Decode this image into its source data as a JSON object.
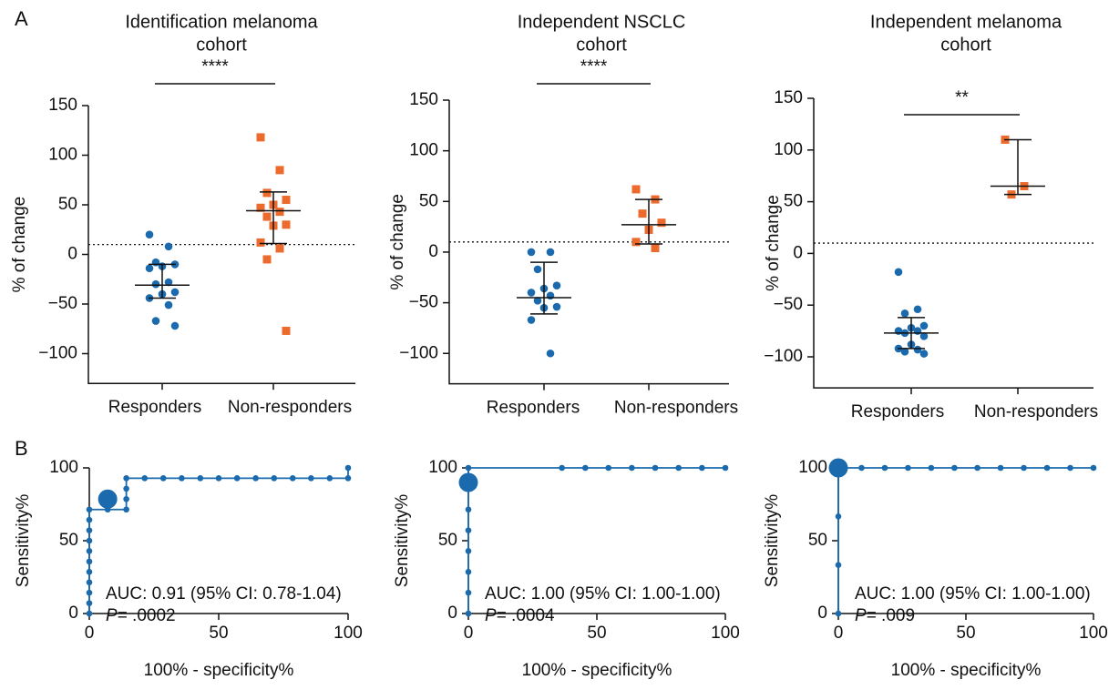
{
  "chart_data": [
    {
      "type": "strip",
      "panel_label": "A",
      "title": [
        "Identification melanoma",
        "cohort"
      ],
      "significance": "****",
      "ylabel": "% of change",
      "categories": [
        "Responders",
        "Non-responders"
      ],
      "values": [
        [
          20,
          8,
          -8,
          -10,
          -12,
          -14,
          -28,
          -30,
          -38,
          -40,
          -44,
          -51,
          -67,
          -72
        ],
        [
          118,
          85,
          62,
          55,
          50,
          47,
          43,
          38,
          30,
          29,
          12,
          6,
          -5,
          -77
        ]
      ],
      "centers": [
        -31,
        44
      ],
      "whisker_low": [
        -44,
        11
      ],
      "whisker_high": [
        -10,
        63
      ],
      "colors": [
        "#1a6aad",
        "#ec6a2c"
      ],
      "markers": [
        "circle",
        "square"
      ],
      "threshold": 10,
      "ylim": [
        -130,
        150
      ],
      "yticks": [
        {
          "value": -100,
          "label": "−100"
        },
        {
          "value": -50,
          "label": "−50"
        },
        0,
        50,
        100,
        150
      ]
    },
    {
      "type": "strip",
      "title": [
        "Independent NSCLC",
        "cohort"
      ],
      "significance": "****",
      "ylabel": "% of change",
      "categories": [
        "Responders",
        "Non-responders"
      ],
      "values": [
        [
          0,
          0,
          -17,
          -33,
          -36,
          -40,
          -43,
          -48,
          -54,
          -55,
          -67,
          -100
        ],
        [
          62,
          52,
          38,
          29,
          22,
          10,
          4
        ]
      ],
      "centers": [
        -45,
        27
      ],
      "whisker_low": [
        -61,
        8
      ],
      "whisker_high": [
        -10,
        52
      ],
      "colors": [
        "#1a6aad",
        "#ec6a2c"
      ],
      "markers": [
        "circle",
        "square"
      ],
      "threshold": 10,
      "ylim": [
        -130,
        150
      ],
      "yticks": [
        {
          "value": -100,
          "label": "−100"
        },
        {
          "value": -50,
          "label": "−50"
        },
        0,
        50,
        100,
        150
      ]
    },
    {
      "type": "strip",
      "title": [
        "Independent melanoma",
        "cohort"
      ],
      "significance": "**",
      "ylabel": "% of change",
      "categories": [
        "Responders",
        "Non-responders"
      ],
      "values": [
        [
          -18,
          -54,
          -58,
          -70,
          -72,
          -75,
          -75,
          -77,
          -80,
          -88,
          -92,
          -93,
          -95,
          -97
        ],
        [
          110,
          65,
          57
        ]
      ],
      "centers": [
        -77,
        65
      ],
      "whisker_low": [
        -92,
        57
      ],
      "whisker_high": [
        -62,
        110
      ],
      "colors": [
        "#1a6aad",
        "#ec6a2c"
      ],
      "markers": [
        "circle",
        "square"
      ],
      "threshold": 10,
      "ylim": [
        -130,
        150
      ],
      "yticks": [
        {
          "value": -100,
          "label": "−100"
        },
        {
          "value": -50,
          "label": "−50"
        },
        0,
        50,
        100,
        150
      ]
    },
    {
      "type": "roc",
      "panel_label": "B",
      "xlabel": "100% - specificity%",
      "ylabel": "Sensitivity%",
      "auc": "AUC: 0.91 (95% CI: 0.78-1.04)",
      "p_symbol": "P",
      "p_text": "= .0002",
      "color": "#1a6aad",
      "x": [
        0,
        0,
        0,
        0,
        0,
        0,
        0,
        0,
        0,
        0,
        0,
        7.1,
        14.3,
        14.3,
        14.3,
        14.3,
        21.4,
        28.6,
        35.7,
        42.9,
        50,
        57.1,
        64.3,
        71.4,
        78.6,
        85.7,
        92.9,
        100,
        100
      ],
      "values": [
        0,
        7.1,
        14.3,
        21.4,
        28.6,
        35.7,
        42.9,
        50,
        57.1,
        64.3,
        71.4,
        71.4,
        71.4,
        78.6,
        85.7,
        92.9,
        92.9,
        92.9,
        92.9,
        92.9,
        92.9,
        92.9,
        92.9,
        92.9,
        92.9,
        92.9,
        92.9,
        92.9,
        100
      ],
      "highlight": {
        "x": 7.1,
        "y": 78.6
      },
      "xlim": [
        0,
        100
      ],
      "ylim": [
        0,
        100
      ],
      "xticks": [
        0,
        50,
        100
      ],
      "yticks": [
        0,
        50,
        100
      ]
    },
    {
      "type": "roc",
      "xlabel": "100% - specificity%",
      "ylabel": "Sensitivity%",
      "auc": "AUC: 1.00 (95% CI: 1.00-1.00)",
      "p_symbol": "P",
      "p_text": "= .0004",
      "color": "#1a6aad",
      "x": [
        0,
        0,
        0,
        0,
        0,
        0,
        0,
        36.4,
        45.5,
        54.5,
        63.6,
        72.7,
        81.8,
        90.9,
        100
      ],
      "values": [
        0,
        14.3,
        28.6,
        42.9,
        57.1,
        71.4,
        100,
        100,
        100,
        100,
        100,
        100,
        100,
        100,
        100
      ],
      "highlight": {
        "x": 0,
        "y": 90
      },
      "xlim": [
        0,
        100
      ],
      "ylim": [
        0,
        100
      ],
      "xticks": [
        0,
        50,
        100
      ],
      "yticks": [
        0,
        50,
        100
      ]
    },
    {
      "type": "roc",
      "xlabel": "100% - specificity%",
      "ylabel": "Sensitivity%",
      "auc": "AUC: 1.00 (95% CI: 1.00-1.00)",
      "p_symbol": "P",
      "p_text": "= .009",
      "color": "#1a6aad",
      "x": [
        0,
        0,
        0,
        0,
        9.1,
        18.2,
        27.3,
        36.4,
        45.5,
        54.5,
        63.6,
        72.7,
        81.8,
        90.9,
        100
      ],
      "values": [
        0,
        33.3,
        66.7,
        100,
        100,
        100,
        100,
        100,
        100,
        100,
        100,
        100,
        100,
        100,
        100
      ],
      "highlight": {
        "x": 0,
        "y": 100
      },
      "xlim": [
        0,
        100
      ],
      "ylim": [
        0,
        100
      ],
      "xticks": [
        0,
        50,
        100
      ],
      "yticks": [
        0,
        50,
        100
      ]
    }
  ]
}
